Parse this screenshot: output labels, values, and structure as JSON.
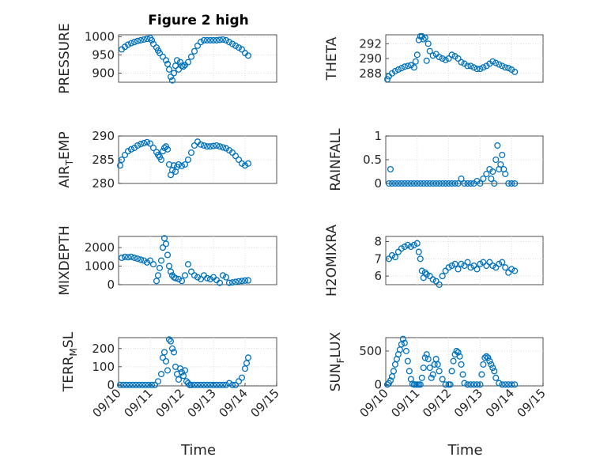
{
  "figure_title": "Figure 2 high",
  "x_axis_label": "Time",
  "colors": {
    "marker": "#0072bd",
    "axes": "#262626",
    "grid": "#dcdcdc"
  },
  "chart_data": [
    {
      "type": "scatter",
      "id": "pressure",
      "title": "Figure 2 high",
      "ylabel": "PRESSURE",
      "ylim": [
        875,
        1005
      ],
      "yticks": [
        900,
        950,
        1000
      ],
      "xlim": [
        0,
        5
      ],
      "xticks": [],
      "xticklabels": [],
      "xlabel": "",
      "x": [
        0.1,
        0.2,
        0.3,
        0.4,
        0.5,
        0.6,
        0.7,
        0.8,
        0.9,
        1.0,
        1.05,
        1.1,
        1.2,
        1.25,
        1.3,
        1.4,
        1.5,
        1.55,
        1.6,
        1.65,
        1.7,
        1.75,
        1.8,
        1.85,
        1.9,
        1.95,
        2.0,
        2.05,
        2.1,
        2.2,
        2.3,
        2.4,
        2.5,
        2.6,
        2.7,
        2.8,
        2.9,
        3.0,
        3.1,
        3.2,
        3.3,
        3.4,
        3.5,
        3.6,
        3.7,
        3.8,
        3.9,
        4.0,
        4.1
      ],
      "y": [
        965,
        972,
        978,
        982,
        985,
        988,
        990,
        992,
        994,
        996,
        990,
        980,
        970,
        962,
        955,
        945,
        935,
        925,
        910,
        890,
        880,
        900,
        920,
        935,
        910,
        930,
        920,
        918,
        922,
        930,
        945,
        960,
        975,
        985,
        990,
        990,
        990,
        990,
        990,
        991,
        992,
        990,
        985,
        980,
        975,
        970,
        965,
        955,
        948
      ]
    },
    {
      "type": "scatter",
      "id": "theta",
      "title": "",
      "ylabel": "THETA",
      "ylim": [
        286.8,
        293.2
      ],
      "yticks": [
        288,
        290,
        292
      ],
      "xlim": [
        0,
        5
      ],
      "xticks": [],
      "xticklabels": [],
      "xlabel": "",
      "x": [
        0.05,
        0.1,
        0.2,
        0.3,
        0.4,
        0.5,
        0.6,
        0.7,
        0.8,
        0.9,
        0.95,
        1.0,
        1.05,
        1.1,
        1.15,
        1.2,
        1.25,
        1.3,
        1.35,
        1.4,
        1.5,
        1.6,
        1.7,
        1.8,
        1.9,
        2.0,
        2.1,
        2.2,
        2.3,
        2.4,
        2.5,
        2.6,
        2.7,
        2.8,
        2.9,
        3.0,
        3.1,
        3.2,
        3.3,
        3.4,
        3.5,
        3.6,
        3.7,
        3.8,
        3.9,
        4.0,
        4.1
      ],
      "y": [
        287.2,
        287.6,
        288.0,
        288.3,
        288.5,
        288.7,
        288.9,
        289.0,
        289.1,
        288.8,
        289.6,
        290.5,
        292.5,
        293.0,
        293.0,
        292.6,
        292.8,
        289.7,
        292.0,
        291.0,
        290.4,
        290.6,
        290.2,
        290.0,
        289.8,
        290.0,
        290.5,
        290.3,
        290.0,
        289.5,
        289.3,
        289.0,
        289.0,
        288.8,
        288.6,
        288.6,
        288.8,
        289.0,
        289.3,
        289.6,
        289.4,
        289.2,
        289.0,
        288.8,
        288.7,
        288.5,
        288.2
      ]
    },
    {
      "type": "scatter",
      "id": "air_temp",
      "title": "",
      "ylabel_main": "AIR",
      "ylabel_sub": "T",
      "ylabel_rest": "EMP",
      "ylim": [
        280,
        290
      ],
      "yticks": [
        280,
        285,
        290
      ],
      "xlim": [
        0,
        5
      ],
      "xticks": [],
      "xticklabels": [],
      "xlabel": "",
      "x": [
        0.05,
        0.1,
        0.2,
        0.3,
        0.4,
        0.5,
        0.6,
        0.7,
        0.8,
        0.9,
        1.0,
        1.1,
        1.2,
        1.25,
        1.3,
        1.35,
        1.4,
        1.45,
        1.5,
        1.55,
        1.6,
        1.65,
        1.7,
        1.75,
        1.8,
        1.85,
        1.9,
        2.0,
        2.1,
        2.2,
        2.3,
        2.4,
        2.5,
        2.6,
        2.7,
        2.8,
        2.9,
        3.0,
        3.1,
        3.2,
        3.3,
        3.4,
        3.5,
        3.6,
        3.7,
        3.8,
        3.9,
        4.0,
        4.1
      ],
      "y": [
        283.8,
        285.0,
        286.0,
        286.8,
        287.2,
        287.5,
        288.0,
        288.3,
        288.5,
        288.7,
        288.4,
        287.5,
        286.6,
        286.0,
        285.6,
        285.0,
        286.8,
        287.5,
        287.8,
        287.2,
        284.0,
        281.8,
        282.8,
        283.8,
        282.5,
        283.5,
        284.0,
        283.7,
        284.0,
        285.0,
        286.5,
        288.0,
        288.8,
        288.2,
        288.0,
        287.8,
        287.8,
        287.9,
        288.0,
        287.8,
        287.6,
        287.4,
        287.0,
        286.5,
        285.8,
        285.0,
        284.2,
        283.8,
        284.2
      ]
    },
    {
      "type": "scatter",
      "id": "rainfall",
      "title": "",
      "ylabel": "RAINFALL",
      "ylim": [
        0,
        1
      ],
      "yticks": [
        0,
        0.5,
        1
      ],
      "yticklabels": [
        "0",
        "0.5",
        "1"
      ],
      "xlim": [
        0,
        5
      ],
      "xticks": [],
      "xticklabels": [],
      "xlabel": "",
      "x": [
        0.1,
        0.15,
        0.2,
        0.3,
        0.4,
        0.5,
        0.6,
        0.7,
        0.8,
        0.9,
        1.0,
        1.1,
        1.2,
        1.3,
        1.4,
        1.5,
        1.6,
        1.7,
        1.8,
        1.9,
        2.0,
        2.1,
        2.2,
        2.3,
        2.4,
        2.5,
        2.6,
        2.7,
        2.8,
        2.9,
        3.0,
        3.1,
        3.2,
        3.3,
        3.35,
        3.4,
        3.45,
        3.5,
        3.55,
        3.6,
        3.65,
        3.7,
        3.75,
        3.8,
        3.9,
        4.0,
        4.1
      ],
      "y": [
        0,
        0.3,
        0,
        0,
        0,
        0,
        0,
        0,
        0,
        0,
        0,
        0,
        0,
        0,
        0,
        0,
        0,
        0,
        0,
        0,
        0,
        0,
        0,
        0,
        0.1,
        0,
        0,
        0,
        0,
        0.05,
        0,
        0.1,
        0.2,
        0.3,
        0.1,
        0.25,
        0,
        0.5,
        0.8,
        0.3,
        0.4,
        0.6,
        0.3,
        0.2,
        0,
        0,
        0
      ]
    },
    {
      "type": "scatter",
      "id": "mixdepth",
      "title": "",
      "ylabel": "MIXDEPTH",
      "ylim": [
        0,
        2600
      ],
      "yticks": [
        0,
        1000,
        2000
      ],
      "xlim": [
        0,
        5
      ],
      "xticks": [],
      "xticklabels": [],
      "xlabel": "",
      "x": [
        0.1,
        0.2,
        0.3,
        0.4,
        0.5,
        0.6,
        0.7,
        0.8,
        0.9,
        1.0,
        1.1,
        1.2,
        1.25,
        1.3,
        1.35,
        1.4,
        1.45,
        1.5,
        1.55,
        1.6,
        1.65,
        1.7,
        1.75,
        1.8,
        1.9,
        2.0,
        2.1,
        2.2,
        2.3,
        2.4,
        2.5,
        2.6,
        2.7,
        2.8,
        2.9,
        3.0,
        3.1,
        3.2,
        3.3,
        3.4,
        3.5,
        3.6,
        3.7,
        3.8,
        3.9,
        4.0,
        4.1
      ],
      "y": [
        1450,
        1500,
        1480,
        1500,
        1450,
        1400,
        1350,
        1300,
        1200,
        1300,
        1100,
        200,
        500,
        900,
        1300,
        2000,
        2500,
        2200,
        1600,
        1000,
        700,
        500,
        400,
        350,
        300,
        200,
        500,
        1100,
        700,
        500,
        400,
        300,
        500,
        350,
        300,
        400,
        250,
        100,
        500,
        400,
        100,
        120,
        150,
        180,
        200,
        220,
        230
      ]
    },
    {
      "type": "scatter",
      "id": "h2omixra",
      "title": "",
      "ylabel": "H2OMIXRA",
      "ylim": [
        5.5,
        8.3
      ],
      "yticks": [
        6,
        7,
        8
      ],
      "xlim": [
        0,
        5
      ],
      "xticks": [],
      "xticklabels": [],
      "xlabel": "",
      "x": [
        0.1,
        0.2,
        0.3,
        0.4,
        0.5,
        0.6,
        0.7,
        0.8,
        0.9,
        1.0,
        1.05,
        1.1,
        1.15,
        1.2,
        1.25,
        1.3,
        1.4,
        1.5,
        1.6,
        1.7,
        1.8,
        1.9,
        2.0,
        2.1,
        2.2,
        2.3,
        2.4,
        2.5,
        2.6,
        2.7,
        2.8,
        2.9,
        3.0,
        3.1,
        3.2,
        3.3,
        3.4,
        3.5,
        3.6,
        3.7,
        3.8,
        3.9,
        4.0,
        4.1
      ],
      "y": [
        7.0,
        7.2,
        7.1,
        7.4,
        7.6,
        7.7,
        7.8,
        7.7,
        7.8,
        7.9,
        7.4,
        7.0,
        6.3,
        5.9,
        6.2,
        6.1,
        6.0,
        5.8,
        5.7,
        5.5,
        6.0,
        6.3,
        6.5,
        6.6,
        6.7,
        6.4,
        6.7,
        6.6,
        6.8,
        6.5,
        6.6,
        6.4,
        6.7,
        6.8,
        6.6,
        6.8,
        6.6,
        6.5,
        6.7,
        6.8,
        6.5,
        6.2,
        6.4,
        6.3
      ]
    },
    {
      "type": "scatter",
      "id": "terr_msl",
      "title": "",
      "ylabel_main": "TERR",
      "ylabel_sub": "M",
      "ylabel_rest": "SL",
      "ylim": [
        -5,
        260
      ],
      "yticks": [
        0,
        100,
        200
      ],
      "xlim": [
        0,
        5
      ],
      "xticks": [
        0,
        1,
        2,
        3,
        4,
        5
      ],
      "xticklabels": [
        "09/10",
        "09/11",
        "09/12",
        "09/13",
        "09/14",
        "09/15"
      ],
      "xlabel": "Time",
      "x": [
        0.05,
        0.15,
        0.25,
        0.35,
        0.45,
        0.55,
        0.65,
        0.75,
        0.85,
        0.95,
        1.05,
        1.15,
        1.25,
        1.35,
        1.4,
        1.45,
        1.5,
        1.55,
        1.6,
        1.65,
        1.7,
        1.75,
        1.8,
        1.85,
        1.9,
        1.95,
        2.0,
        2.05,
        2.1,
        2.15,
        2.2,
        2.25,
        2.3,
        2.4,
        2.5,
        2.6,
        2.7,
        2.8,
        2.9,
        3.0,
        3.1,
        3.2,
        3.3,
        3.4,
        3.5,
        3.6,
        3.7,
        3.8,
        3.9,
        4.0,
        4.05,
        4.1
      ],
      "y": [
        0,
        0,
        0,
        0,
        0,
        0,
        0,
        0,
        0,
        0,
        0,
        0,
        20,
        60,
        150,
        180,
        130,
        80,
        250,
        240,
        200,
        180,
        100,
        60,
        30,
        90,
        70,
        50,
        80,
        20,
        10,
        0,
        0,
        0,
        0,
        0,
        0,
        0,
        0,
        0,
        0,
        0,
        0,
        0,
        10,
        0,
        0,
        20,
        40,
        90,
        120,
        150
      ]
    },
    {
      "type": "scatter",
      "id": "sun_flux",
      "title": "",
      "ylabel_main": "SUN",
      "ylabel_sub": "F",
      "ylabel_rest": "LUX",
      "ylim": [
        -20,
        700
      ],
      "yticks": [
        0,
        500
      ],
      "xlim": [
        0,
        5
      ],
      "xticks": [
        0,
        1,
        2,
        3,
        4,
        5
      ],
      "xticklabels": [
        "09/10",
        "09/11",
        "09/12",
        "09/13",
        "09/14",
        "09/15"
      ],
      "xlabel": "Time",
      "x": [
        0.05,
        0.1,
        0.15,
        0.2,
        0.25,
        0.3,
        0.35,
        0.4,
        0.45,
        0.5,
        0.55,
        0.6,
        0.65,
        0.7,
        0.75,
        0.8,
        0.85,
        0.9,
        0.95,
        1.0,
        1.05,
        1.1,
        1.15,
        1.2,
        1.25,
        1.3,
        1.35,
        1.4,
        1.45,
        1.5,
        1.55,
        1.6,
        1.65,
        1.7,
        1.8,
        1.9,
        2.0,
        2.05,
        2.1,
        2.15,
        2.2,
        2.25,
        2.3,
        2.35,
        2.4,
        2.45,
        2.5,
        2.6,
        2.7,
        2.8,
        2.9,
        3.0,
        3.05,
        3.1,
        3.15,
        3.2,
        3.25,
        3.3,
        3.35,
        3.4,
        3.45,
        3.5,
        3.6,
        3.7,
        3.8,
        3.9,
        4.0,
        4.1
      ],
      "y": [
        0,
        20,
        60,
        120,
        200,
        300,
        380,
        450,
        520,
        600,
        680,
        620,
        500,
        350,
        200,
        80,
        10,
        0,
        0,
        0,
        0,
        0,
        100,
        250,
        400,
        450,
        380,
        250,
        100,
        150,
        300,
        380,
        300,
        200,
        80,
        0,
        0,
        0,
        200,
        350,
        450,
        500,
        480,
        420,
        300,
        150,
        20,
        0,
        0,
        0,
        0,
        0,
        150,
        300,
        400,
        420,
        400,
        350,
        300,
        250,
        200,
        100,
        20,
        0,
        0,
        0,
        0,
        0
      ]
    }
  ]
}
